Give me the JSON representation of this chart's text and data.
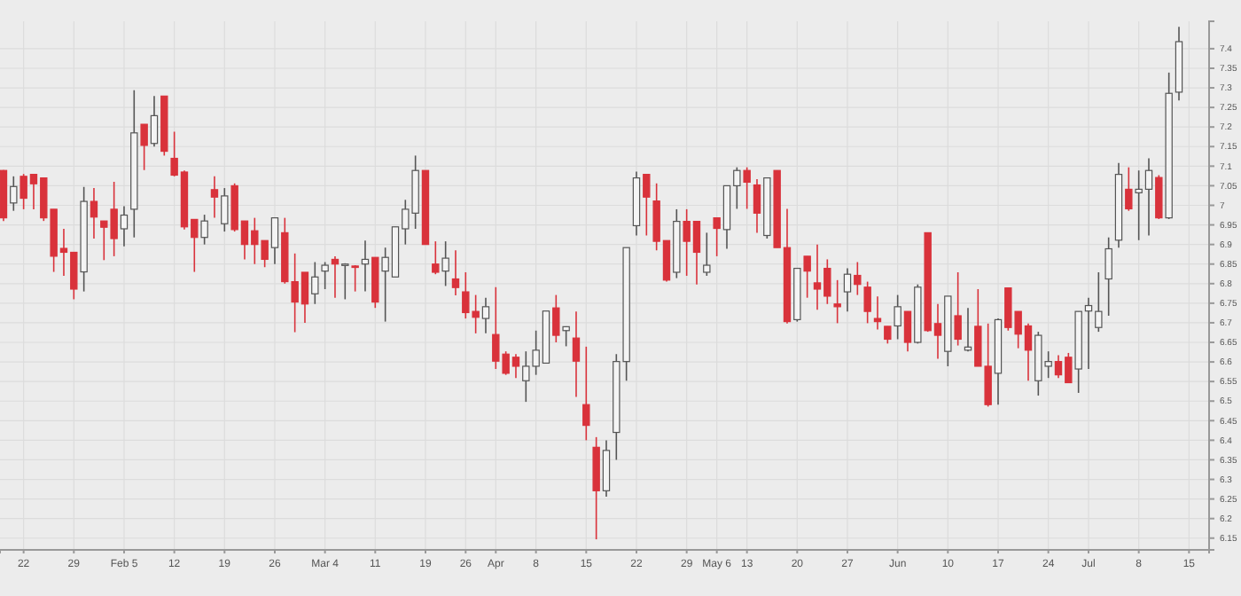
{
  "chart_data": {
    "type": "candlestick",
    "categories": [
      null,
      null,
      "22",
      null,
      null,
      null,
      null,
      "29",
      null,
      null,
      null,
      null,
      "Feb 5",
      null,
      null,
      null,
      null,
      "12",
      null,
      null,
      null,
      null,
      "19",
      null,
      null,
      null,
      null,
      "26",
      null,
      null,
      null,
      null,
      "Mar 4",
      null,
      null,
      null,
      null,
      "11",
      null,
      null,
      null,
      null,
      "19",
      null,
      null,
      null,
      "26",
      null,
      null,
      "Apr",
      null,
      null,
      null,
      "8",
      null,
      null,
      null,
      null,
      "15",
      null,
      null,
      null,
      null,
      "22",
      null,
      null,
      null,
      null,
      "29",
      null,
      null,
      "May 6",
      null,
      null,
      "13",
      null,
      null,
      null,
      null,
      "20",
      null,
      null,
      null,
      null,
      "27",
      null,
      null,
      null,
      null,
      "Jun",
      null,
      null,
      null,
      null,
      "10",
      null,
      null,
      null,
      null,
      "17",
      null,
      null,
      null,
      null,
      "24",
      null,
      null,
      null,
      "Jul",
      null,
      null,
      null,
      null,
      "8",
      null,
      null,
      null,
      null,
      "15"
    ],
    "ohlc": [
      [
        7.089,
        7.09,
        6.96,
        6.968
      ],
      [
        7.006,
        7.074,
        6.986,
        7.048
      ],
      [
        7.074,
        7.08,
        6.99,
        7.018
      ],
      [
        7.079,
        7.079,
        6.99,
        7.055
      ],
      [
        7.07,
        7.07,
        6.96,
        6.968
      ],
      [
        6.99,
        6.99,
        6.83,
        6.87
      ],
      [
        6.89,
        6.94,
        6.82,
        6.88
      ],
      [
        6.88,
        6.88,
        6.76,
        6.786
      ],
      [
        6.83,
        7.047,
        6.78,
        7.01
      ],
      [
        7.01,
        7.044,
        6.915,
        6.97
      ],
      [
        6.96,
        6.96,
        6.86,
        6.944
      ],
      [
        6.99,
        7.06,
        6.87,
        6.915
      ],
      [
        6.94,
        6.998,
        6.895,
        6.975
      ],
      [
        6.99,
        7.294,
        6.918,
        7.185
      ],
      [
        7.207,
        7.207,
        7.09,
        7.153
      ],
      [
        7.158,
        7.279,
        7.15,
        7.229
      ],
      [
        7.279,
        7.279,
        7.127,
        7.138
      ],
      [
        7.12,
        7.188,
        7.074,
        7.077
      ],
      [
        7.085,
        7.089,
        6.938,
        6.945
      ],
      [
        6.964,
        6.964,
        6.83,
        6.918
      ],
      [
        6.918,
        6.976,
        6.9,
        6.96
      ],
      [
        7.04,
        7.074,
        6.968,
        7.021
      ],
      [
        6.953,
        7.044,
        6.933,
        7.024
      ],
      [
        7.05,
        7.056,
        6.933,
        6.938
      ],
      [
        6.96,
        6.96,
        6.862,
        6.9
      ],
      [
        6.935,
        6.968,
        6.85,
        6.9
      ],
      [
        6.91,
        6.91,
        6.842,
        6.862
      ],
      [
        6.892,
        6.968,
        6.85,
        6.968
      ],
      [
        6.93,
        6.968,
        6.8,
        6.805
      ],
      [
        6.805,
        6.877,
        6.676,
        6.753
      ],
      [
        6.829,
        6.829,
        6.7,
        6.748
      ],
      [
        6.774,
        6.855,
        6.748,
        6.817
      ],
      [
        6.832,
        6.855,
        6.786,
        6.847
      ],
      [
        6.862,
        6.87,
        6.764,
        6.85
      ],
      [
        6.85,
        6.852,
        6.76,
        6.85
      ],
      [
        6.845,
        6.847,
        6.78,
        6.843
      ],
      [
        6.85,
        6.91,
        6.78,
        6.862
      ],
      [
        6.867,
        6.867,
        6.738,
        6.753
      ],
      [
        6.832,
        6.892,
        6.703,
        6.867
      ],
      [
        6.817,
        6.945,
        6.817,
        6.945
      ],
      [
        6.94,
        7.014,
        6.9,
        6.99
      ],
      [
        6.98,
        7.127,
        6.94,
        7.089
      ],
      [
        7.089,
        7.089,
        6.9,
        6.9
      ],
      [
        6.85,
        6.908,
        6.824,
        6.829
      ],
      [
        6.832,
        6.908,
        6.794,
        6.865
      ],
      [
        6.812,
        6.885,
        6.77,
        6.79
      ],
      [
        6.779,
        6.829,
        6.711,
        6.726
      ],
      [
        6.729,
        6.771,
        6.673,
        6.714
      ],
      [
        6.711,
        6.764,
        6.673,
        6.741
      ],
      [
        6.67,
        6.791,
        6.582,
        6.602
      ],
      [
        6.62,
        6.627,
        6.567,
        6.571
      ],
      [
        6.612,
        6.62,
        6.559,
        6.589
      ],
      [
        6.552,
        6.627,
        6.498,
        6.589
      ],
      [
        6.589,
        6.68,
        6.567,
        6.63
      ],
      [
        6.597,
        6.73,
        6.597,
        6.73
      ],
      [
        6.738,
        6.771,
        6.65,
        6.668
      ],
      [
        6.68,
        6.691,
        6.64,
        6.69
      ],
      [
        6.661,
        6.729,
        6.511,
        6.602
      ],
      [
        6.491,
        6.639,
        6.4,
        6.438
      ],
      [
        6.382,
        6.408,
        6.147,
        6.271
      ],
      [
        6.271,
        6.4,
        6.256,
        6.374
      ],
      [
        6.42,
        6.62,
        6.35,
        6.601
      ],
      [
        6.601,
        6.892,
        6.552,
        6.892
      ],
      [
        6.948,
        7.086,
        6.923,
        7.07
      ],
      [
        7.079,
        7.079,
        6.923,
        7.021
      ],
      [
        7.011,
        7.056,
        6.885,
        6.908
      ],
      [
        6.91,
        6.91,
        6.805,
        6.809
      ],
      [
        6.829,
        6.99,
        6.814,
        6.959
      ],
      [
        6.959,
        6.99,
        6.82,
        6.908
      ],
      [
        6.959,
        6.959,
        6.798,
        6.88
      ],
      [
        6.829,
        6.93,
        6.82,
        6.847
      ],
      [
        6.968,
        6.968,
        6.87,
        6.941
      ],
      [
        6.938,
        7.05,
        6.889,
        7.05
      ],
      [
        7.05,
        7.097,
        6.991,
        7.089
      ],
      [
        7.089,
        7.097,
        6.991,
        7.059
      ],
      [
        7.052,
        7.067,
        6.93,
        6.98
      ],
      [
        6.923,
        7.07,
        6.915,
        7.07
      ],
      [
        7.089,
        7.089,
        6.892,
        6.892
      ],
      [
        6.892,
        6.991,
        6.698,
        6.703
      ],
      [
        6.708,
        6.839,
        6.703,
        6.839
      ],
      [
        6.87,
        6.87,
        6.764,
        6.832
      ],
      [
        6.802,
        6.9,
        6.733,
        6.786
      ],
      [
        6.839,
        6.862,
        6.748,
        6.768
      ],
      [
        6.748,
        6.809,
        6.699,
        6.741
      ],
      [
        6.779,
        6.839,
        6.729,
        6.824
      ],
      [
        6.821,
        6.855,
        6.771,
        6.798
      ],
      [
        6.791,
        6.805,
        6.699,
        6.729
      ],
      [
        6.711,
        6.767,
        6.683,
        6.703
      ],
      [
        6.691,
        6.691,
        6.647,
        6.658
      ],
      [
        6.692,
        6.771,
        6.658,
        6.741
      ],
      [
        6.729,
        6.729,
        6.627,
        6.65
      ],
      [
        6.65,
        6.798,
        6.647,
        6.791
      ],
      [
        6.93,
        6.93,
        6.677,
        6.68
      ],
      [
        6.698,
        6.748,
        6.608,
        6.668
      ],
      [
        6.627,
        6.768,
        6.589,
        6.768
      ],
      [
        6.718,
        6.829,
        6.642,
        6.658
      ],
      [
        6.63,
        6.738,
        6.627,
        6.638
      ],
      [
        6.691,
        6.786,
        6.589,
        6.589
      ],
      [
        6.589,
        6.698,
        6.486,
        6.491
      ],
      [
        6.571,
        6.711,
        6.491,
        6.708
      ],
      [
        6.789,
        6.789,
        6.68,
        6.688
      ],
      [
        6.729,
        6.729,
        6.635,
        6.671
      ],
      [
        6.692,
        6.698,
        6.552,
        6.63
      ],
      [
        6.552,
        6.677,
        6.514,
        6.668
      ],
      [
        6.589,
        6.627,
        6.559,
        6.601
      ],
      [
        6.601,
        6.617,
        6.559,
        6.567
      ],
      [
        6.612,
        6.623,
        6.547,
        6.547
      ],
      [
        6.582,
        6.729,
        6.521,
        6.729
      ],
      [
        6.73,
        6.764,
        6.582,
        6.744
      ],
      [
        6.688,
        6.829,
        6.677,
        6.729
      ],
      [
        6.812,
        6.918,
        6.718,
        6.889
      ],
      [
        6.911,
        7.108,
        6.892,
        7.079
      ],
      [
        7.041,
        7.097,
        6.986,
        6.991
      ],
      [
        7.032,
        7.089,
        6.911,
        7.041
      ],
      [
        7.041,
        7.12,
        6.923,
        7.089
      ],
      [
        7.071,
        7.077,
        6.965,
        6.968
      ],
      [
        6.968,
        7.339,
        6.965,
        7.286
      ],
      [
        7.289,
        7.456,
        7.268,
        7.418
      ],
      null
    ],
    "ylim": [
      6.12,
      7.47
    ],
    "yticks": [
      6.15,
      6.2,
      6.25,
      6.3,
      6.35,
      6.4,
      6.45,
      6.5,
      6.55,
      6.6,
      6.65,
      6.7,
      6.75,
      6.8,
      6.85,
      6.9,
      6.95,
      7,
      7.05,
      7.1,
      7.15,
      7.2,
      7.25,
      7.3,
      7.35,
      7.4
    ],
    "grid": true
  }
}
